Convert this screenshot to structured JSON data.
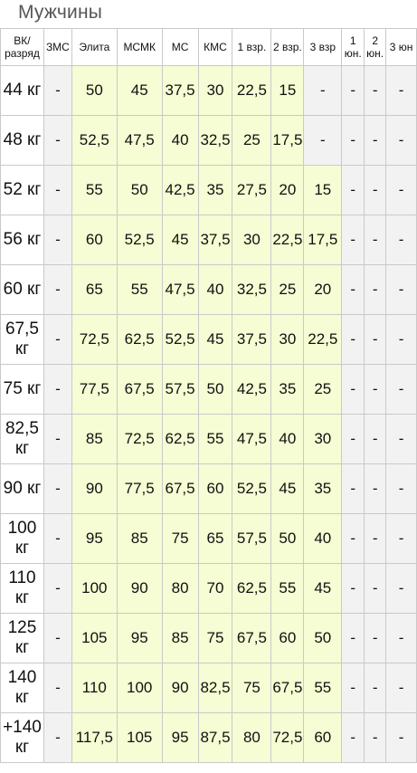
{
  "title": "Мужчины",
  "headers": [
    "ВК/ разряд",
    "ЗМС",
    "Элита",
    "МСМК",
    "МС",
    "КМС",
    "1 взр.",
    "2 взр.",
    "3 взр",
    "1 юн.",
    "2 юн.",
    "3 юн"
  ],
  "rows": [
    {
      "weight": "44 кг",
      "values": [
        "-",
        "50",
        "45",
        "37,5",
        "30",
        "22,5",
        "15",
        "-",
        "-",
        "-",
        "-"
      ]
    },
    {
      "weight": "48 кг",
      "values": [
        "-",
        "52,5",
        "47,5",
        "40",
        "32,5",
        "25",
        "17,5",
        "-",
        "-",
        "-",
        "-"
      ]
    },
    {
      "weight": "52 кг",
      "values": [
        "-",
        "55",
        "50",
        "42,5",
        "35",
        "27,5",
        "20",
        "15",
        "-",
        "-",
        "-"
      ]
    },
    {
      "weight": "56 кг",
      "values": [
        "-",
        "60",
        "52,5",
        "45",
        "37,5",
        "30",
        "22,5",
        "17,5",
        "-",
        "-",
        "-"
      ]
    },
    {
      "weight": "60 кг",
      "values": [
        "-",
        "65",
        "55",
        "47,5",
        "40",
        "32,5",
        "25",
        "20",
        "-",
        "-",
        "-"
      ]
    },
    {
      "weight": "67,5 кг",
      "values": [
        "-",
        "72,5",
        "62,5",
        "52,5",
        "45",
        "37,5",
        "30",
        "22,5",
        "-",
        "-",
        "-"
      ]
    },
    {
      "weight": "75 кг",
      "values": [
        "-",
        "77,5",
        "67,5",
        "57,5",
        "50",
        "42,5",
        "35",
        "25",
        "-",
        "-",
        "-"
      ]
    },
    {
      "weight": "82,5 кг",
      "values": [
        "-",
        "85",
        "72,5",
        "62,5",
        "55",
        "47,5",
        "40",
        "30",
        "-",
        "-",
        "-"
      ]
    },
    {
      "weight": "90 кг",
      "values": [
        "-",
        "90",
        "77,5",
        "67,5",
        "60",
        "52,5",
        "45",
        "35",
        "-",
        "-",
        "-"
      ]
    },
    {
      "weight": "100 кг",
      "values": [
        "-",
        "95",
        "85",
        "75",
        "65",
        "57,5",
        "50",
        "40",
        "-",
        "-",
        "-"
      ]
    },
    {
      "weight": "110 кг",
      "values": [
        "-",
        "100",
        "90",
        "80",
        "70",
        "62,5",
        "55",
        "45",
        "-",
        "-",
        "-"
      ]
    },
    {
      "weight": "125 кг",
      "values": [
        "-",
        "105",
        "95",
        "85",
        "75",
        "67,5",
        "60",
        "50",
        "-",
        "-",
        "-"
      ]
    },
    {
      "weight": "140 кг",
      "values": [
        "-",
        "110",
        "100",
        "90",
        "82,5",
        "75",
        "67,5",
        "55",
        "-",
        "-",
        "-"
      ]
    },
    {
      "weight": "+140 кг",
      "values": [
        "-",
        "117,5",
        "105",
        "95",
        "87,5",
        "80",
        "72,5",
        "60",
        "-",
        "-",
        "-"
      ]
    }
  ],
  "colors": {
    "standard_cell": "#f6fcd3",
    "empty_cell": "#f2f2f2",
    "grid_line": "#c9c9c9",
    "title": "#555555"
  }
}
